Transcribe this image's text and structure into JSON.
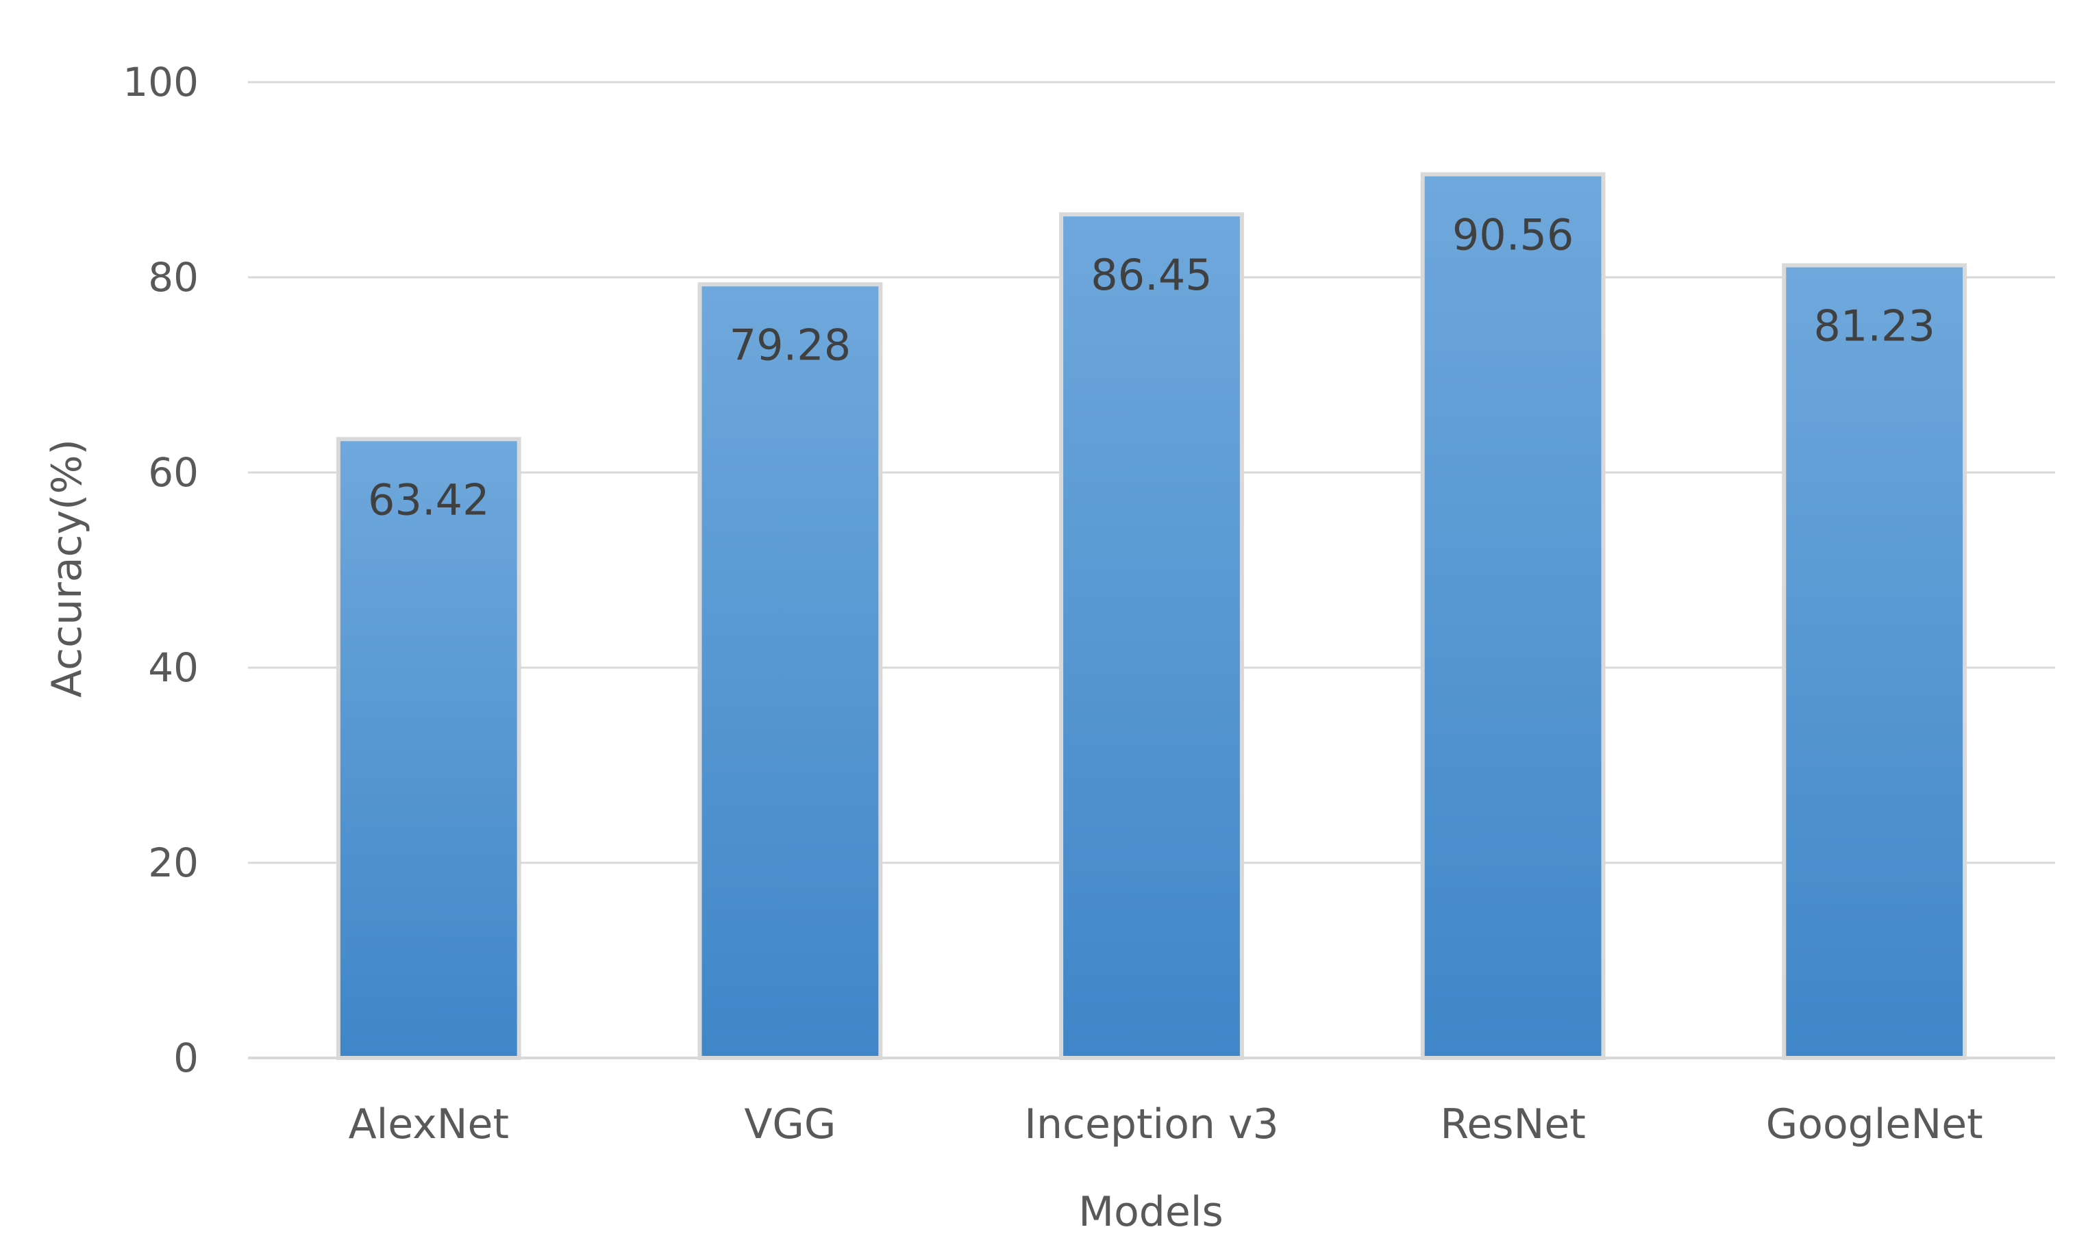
{
  "chart_data": {
    "type": "bar",
    "categories": [
      "AlexNet",
      "VGG",
      "Inception v3",
      "ResNet",
      "GoogleNet"
    ],
    "values": [
      63.42,
      79.28,
      86.45,
      90.56,
      81.23
    ],
    "data_labels": [
      "63.42",
      "79.28",
      "86.45",
      "90.56",
      "81.23"
    ],
    "title": "",
    "xlabel": "Models",
    "ylabel": "Accuracy(%)",
    "ylim": [
      0,
      100
    ],
    "yticks": [
      0,
      20,
      40,
      60,
      80,
      100
    ],
    "ytick_labels": [
      "0",
      "20",
      "40",
      "60",
      "80",
      "100"
    ],
    "grid": true,
    "legend": "none",
    "bar_color_top": "#6fa8dc",
    "bar_color_bottom": "#3f86c8"
  }
}
